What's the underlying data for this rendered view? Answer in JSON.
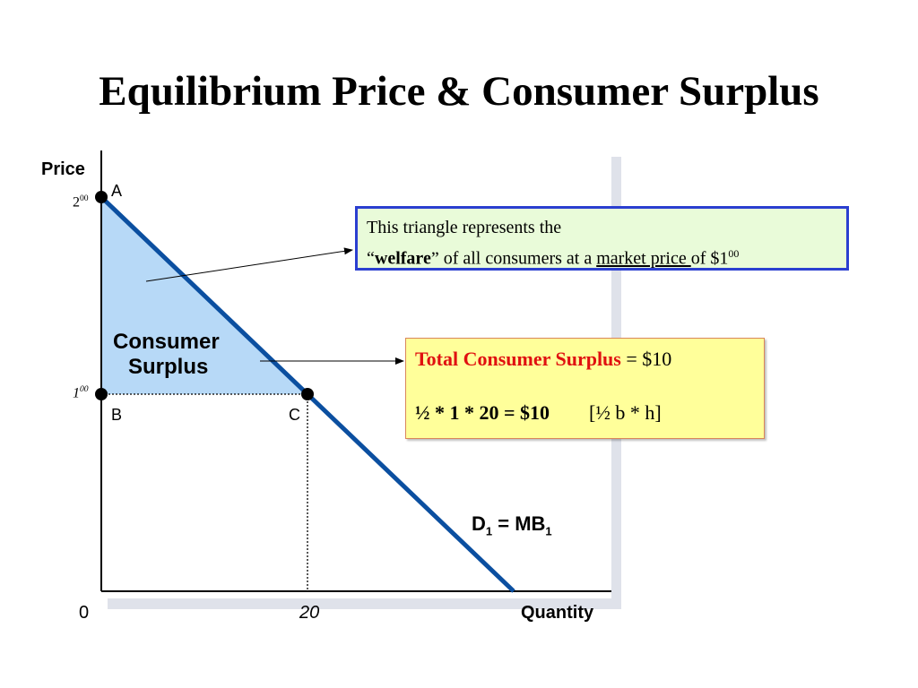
{
  "slide": {
    "title": "Equilibrium Price & Consumer Surplus"
  },
  "chart_data": {
    "type": "line",
    "title": "Equilibrium Price & Consumer Surplus",
    "xlabel": "Quantity",
    "ylabel": "Price",
    "xlim": [
      0,
      40
    ],
    "ylim": [
      0,
      2.0
    ],
    "series": [
      {
        "name": "D1 = MB1",
        "x": [
          0,
          40
        ],
        "y": [
          2.0,
          0
        ]
      }
    ],
    "x_ticks": [
      {
        "value": 0,
        "label": "0"
      },
      {
        "value": 20,
        "label": "20"
      }
    ],
    "y_ticks": [
      {
        "value": 2.0,
        "main": "2",
        "sup": "00"
      },
      {
        "value": 1.0,
        "main": "1",
        "sup": "00"
      }
    ],
    "points": [
      {
        "label": "A",
        "x": 0,
        "y": 2.0
      },
      {
        "label": "B",
        "x": 0,
        "y": 1.0
      },
      {
        "label": "C",
        "x": 20,
        "y": 1.0
      }
    ],
    "shaded_region": {
      "label_line1": "Consumer",
      "label_line2": "Surplus",
      "vertices": [
        [
          0,
          2.0
        ],
        [
          0,
          1.0
        ],
        [
          20,
          1.0
        ]
      ]
    },
    "curve_label": {
      "main": "D",
      "sub1": "1",
      "mid": " = MB",
      "sub2": "1"
    },
    "colors": {
      "curve": "#0b4fa0",
      "fill": "#b7d9f7",
      "box1_border": "#2b3fd0",
      "box1_fill": "#e9fbd9",
      "box2_fill": "#ffff9a",
      "highlight": "#e01010"
    }
  },
  "annotations": {
    "welfare_box": {
      "line1": "This triangle represents the",
      "line2_q_open": "“",
      "line2_bold": "welfare",
      "line2_mid": "” of all consumers at a ",
      "line2_underline": "market price ",
      "line2_end": "of $1",
      "line2_sup": "00"
    },
    "surplus_box": {
      "line1_red": "Total Consumer Surplus",
      "line1_rest": " = $10",
      "line2_formula": "½ * 1 * 20 = $10",
      "line2_bracket": "[½ b * h]"
    }
  }
}
